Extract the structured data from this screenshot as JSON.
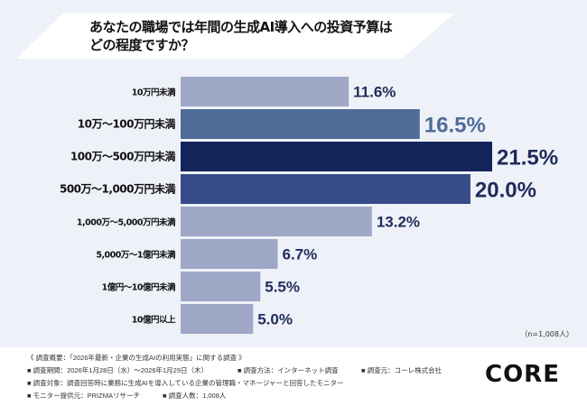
{
  "title_line1": "あなたの職場では年間の生成AI導入への投資予算は",
  "title_line2": "どの程度ですか？",
  "chart_data": {
    "type": "bar",
    "orientation": "horizontal",
    "categories": [
      "10万円未満",
      "10万～100万円未満",
      "100万～500万円未満",
      "500万～1,000万円未満",
      "1,000万～5,000万円未満",
      "5,000万～1億円未満",
      "1億円～10億円未満",
      "10億円以上"
    ],
    "values": [
      11.6,
      16.5,
      21.5,
      20.0,
      13.2,
      6.7,
      5.5,
      5.0
    ],
    "labels": [
      "11.6%",
      "16.5%",
      "21.5%",
      "20.0%",
      "13.2%",
      "6.7%",
      "5.5%",
      "5.0%"
    ],
    "bar_colors": [
      "#9ea8c6",
      "#4f6c97",
      "#13245b",
      "#374b88",
      "#9ea8c6",
      "#9ea8c6",
      "#9ea8c6",
      "#9ea8c6"
    ],
    "label_colors": [
      "#1f2b5c",
      "#4f6c97",
      "#1f2b5c",
      "#1f2b5c",
      "#1f2b5c",
      "#1f2b5c",
      "#1f2b5c",
      "#1f2b5c"
    ],
    "emphasized": [
      false,
      true,
      true,
      true,
      false,
      false,
      false,
      false
    ],
    "grid": false,
    "xlim": [
      0,
      21.5
    ]
  },
  "sample_size": "（n=1,008人）",
  "footer": {
    "line1": "《 調査概要：「2026年最新・企業の生成AIの利用実態」に関する調査 》",
    "period": "■ 調査期間：2026年1月28日（水）～2026年1月29日（木）",
    "method": "■ 調査方法：インターネット調査",
    "source": "■ 調査元：コーレ株式会社",
    "target": "■ 調査対象：調査回答時に業務に生成AIを導入している企業の管理職・マネージャーと回答したモニター",
    "provider": "■ モニター提供元：PRIZMAリサーチ",
    "count": "■ 調査人数：1,008人"
  },
  "logo": "CORE"
}
